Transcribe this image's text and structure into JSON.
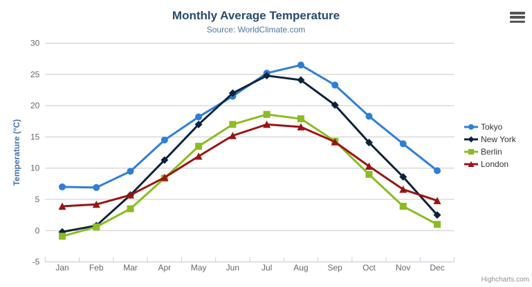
{
  "header": {
    "title": "Monthly Average Temperature",
    "subtitle": "Source: WorldClimate.com"
  },
  "toolbar": {
    "context_menu_icon": "hamburger-menu-icon"
  },
  "credit": "Highcharts.com",
  "chart_data": {
    "type": "line",
    "title": "Monthly Average Temperature",
    "subtitle": "Source: WorldClimate.com",
    "xlabel": "",
    "ylabel": "Temperature (°C)",
    "categories": [
      "Jan",
      "Feb",
      "Mar",
      "Apr",
      "May",
      "Jun",
      "Jul",
      "Aug",
      "Sep",
      "Oct",
      "Nov",
      "Dec"
    ],
    "yticks": [
      -5,
      0,
      5,
      10,
      15,
      20,
      25,
      30
    ],
    "ylim": [
      -5,
      30
    ],
    "grid": true,
    "legend_position": "right",
    "series": [
      {
        "name": "Tokyo",
        "color": "#2f7ed8",
        "marker": "circle",
        "values": [
          7.0,
          6.9,
          9.5,
          14.5,
          18.2,
          21.5,
          25.2,
          26.5,
          23.3,
          18.3,
          13.9,
          9.6
        ]
      },
      {
        "name": "New York",
        "color": "#0d233a",
        "marker": "diamond",
        "values": [
          -0.2,
          0.8,
          5.7,
          11.3,
          17.0,
          22.0,
          24.8,
          24.1,
          20.1,
          14.1,
          8.6,
          2.5
        ]
      },
      {
        "name": "Berlin",
        "color": "#8bbc21",
        "marker": "square",
        "values": [
          -0.9,
          0.6,
          3.5,
          8.4,
          13.5,
          17.0,
          18.6,
          17.9,
          14.3,
          9.0,
          3.9,
          1.0
        ]
      },
      {
        "name": "London",
        "color": "#9a1414",
        "marker": "triangle",
        "values": [
          3.9,
          4.2,
          5.7,
          8.5,
          11.9,
          15.2,
          17.0,
          16.6,
          14.2,
          10.3,
          6.6,
          4.8
        ]
      }
    ],
    "colors": {
      "grid_line": "#c8c8c8",
      "axis_line": "#c0d0e0",
      "tick_label": "#666666",
      "axis_title": "#4572a7",
      "title": "#274b6d",
      "subtitle": "#4d759e",
      "legend_text": "#333333"
    }
  }
}
